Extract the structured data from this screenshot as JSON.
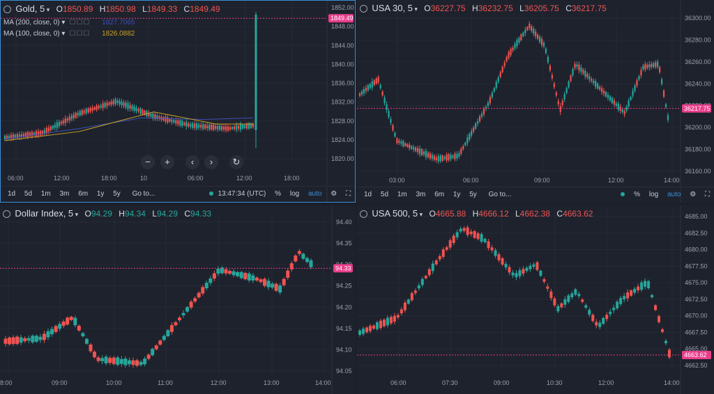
{
  "colors": {
    "up": "#26a69a",
    "down": "#ef5350",
    "tag": "#e83e8c",
    "bg": "#1e222d",
    "ma200": "#3f51b5",
    "ma100": "#c9a227"
  },
  "panels": [
    {
      "id": "gold",
      "symbol": "Gold, 5",
      "o": "1850.89",
      "h": "1850.98",
      "l": "1849.33",
      "c": "1849.49",
      "ma": [
        {
          "label": "MA (200, close, 0)",
          "value": "1827.7065",
          "color": "#3f51b5"
        },
        {
          "label": "MA (100, close, 0)",
          "value": "1826.0882",
          "color": "#c9a227"
        }
      ],
      "last": "1849.49",
      "price_ticks": [
        "1852.00",
        "1848.00",
        "1844.00",
        "1840.00",
        "1836.00",
        "1832.00",
        "1828.00",
        "1824.00",
        "1820.00"
      ],
      "time_ticks": [
        "06:00",
        "12:00",
        "18:00",
        "10",
        "06:00",
        "12:00",
        "18:00"
      ],
      "toolbar": {
        "ranges": [
          "1d",
          "5d",
          "1m",
          "3m",
          "6m",
          "1y",
          "5y"
        ],
        "goto": "Go to...",
        "clock": "13:47:34 (UTC)",
        "pct": "%",
        "log": "log",
        "auto": "auto"
      },
      "nav": {
        "minus": "−",
        "plus": "+",
        "left": "‹",
        "right": "›",
        "reset": "↻"
      }
    },
    {
      "id": "dow",
      "symbol": "USA 30, 5",
      "o": "36227.75",
      "h": "36232.75",
      "l": "36205.75",
      "c": "36217.75",
      "last": "36217.75",
      "price_ticks": [
        "36300.00",
        "36280.00",
        "36260.00",
        "36240.00",
        "36220.00",
        "36200.00",
        "36180.00",
        "36160.00"
      ],
      "time_ticks": [
        "03:00",
        "06:00",
        "09:00",
        "12:00",
        "14:00"
      ],
      "toolbar": {
        "ranges": [
          "1d",
          "5d",
          "1m",
          "3m",
          "6m",
          "1y",
          "5y"
        ],
        "goto": "Go to...",
        "pct": "%",
        "log": "log",
        "auto": "auto"
      }
    },
    {
      "id": "dxy",
      "symbol": "Dollar Index, 5",
      "o": "94.29",
      "h": "94.34",
      "l": "94.29",
      "c": "94.33",
      "last": "94.33",
      "price_ticks": [
        "94.40",
        "94.35",
        "94.30",
        "94.25",
        "94.20",
        "94.15",
        "94.10",
        "94.05"
      ],
      "time_ticks": [
        "8:00",
        "09:00",
        "10:00",
        "11:00",
        "12:00",
        "13:00",
        "14:00"
      ]
    },
    {
      "id": "spx",
      "symbol": "USA 500, 5",
      "o": "4665.88",
      "h": "4666.12",
      "l": "4662.38",
      "c": "4663.62",
      "last": "4663.62",
      "price_ticks": [
        "4685.00",
        "4682.50",
        "4680.00",
        "4677.50",
        "4675.00",
        "4672.50",
        "4670.00",
        "4667.50",
        "4665.00",
        "4662.50"
      ],
      "time_ticks": [
        "06:00",
        "07:30",
        "09:00",
        "10:30",
        "12:00",
        "14:00"
      ]
    }
  ]
}
